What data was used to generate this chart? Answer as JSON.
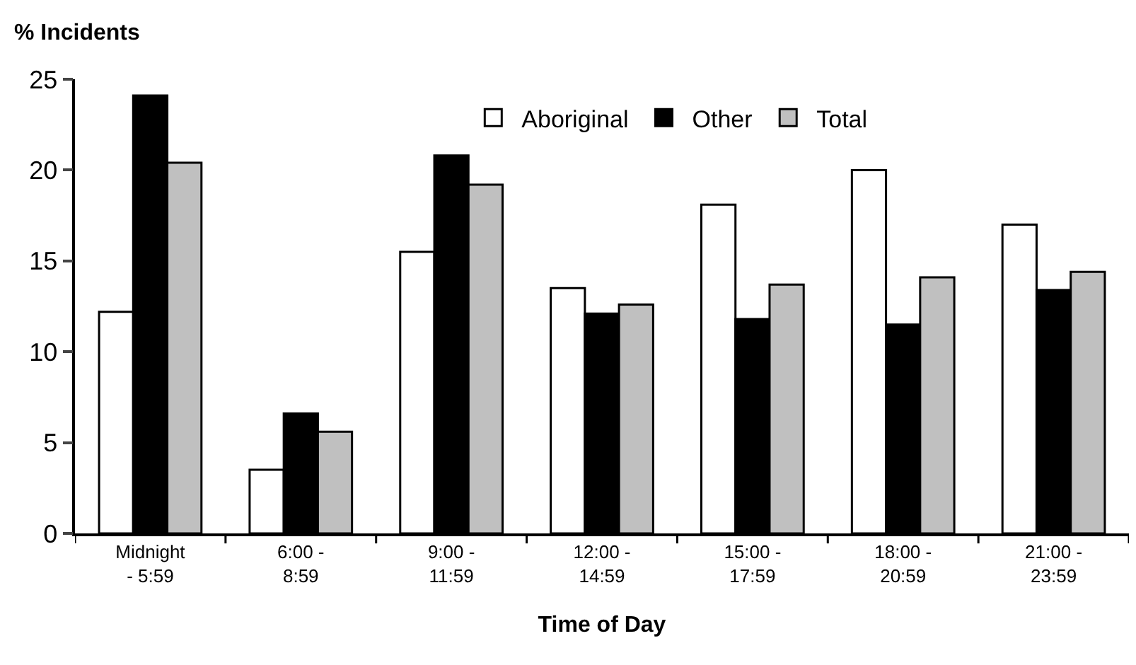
{
  "chart_data": {
    "type": "bar",
    "xlabel": "Time of Day",
    "ylabel": "% Incidents",
    "categories": [
      "Midnight - 5:59",
      "6:00 - 8:59",
      "9:00 - 11:59",
      "12:00 - 14:59",
      "15:00 - 17:59",
      "18:00 - 20:59",
      "21:00 - 23:59"
    ],
    "series": [
      {
        "name": "Aboriginal",
        "color": "#ffffff",
        "values": [
          12.2,
          3.5,
          15.5,
          13.5,
          18.1,
          20.0,
          17.0
        ]
      },
      {
        "name": "Other",
        "color": "#000000",
        "values": [
          24.1,
          6.6,
          20.8,
          12.1,
          11.8,
          11.5,
          13.4
        ]
      },
      {
        "name": "Total",
        "color": "#c0c0c0",
        "values": [
          20.4,
          5.6,
          19.2,
          12.6,
          13.7,
          14.1,
          14.4
        ]
      }
    ],
    "ylim": [
      0,
      25
    ],
    "yticks": [
      0,
      5,
      10,
      15,
      20,
      25
    ],
    "grid": false,
    "legend": "top"
  }
}
